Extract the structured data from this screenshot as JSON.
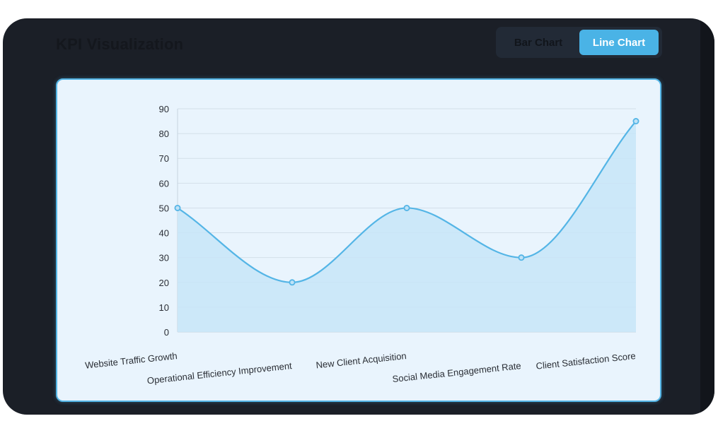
{
  "page": {
    "title": "KPI Visualization"
  },
  "toggle": {
    "bar_label": "Bar Chart",
    "line_label": "Line Chart",
    "active": "line"
  },
  "colors": {
    "background": "#1b1f27",
    "accent": "#4ab3e6",
    "card_background": "#e9f4fd",
    "line": "#54b5e6",
    "area_fill": "#c7e5f8"
  },
  "chart_data": {
    "type": "line",
    "categories": [
      "Website Traffic Growth",
      "Operational Efficiency Improvement",
      "New Client Acquisition",
      "Social Media Engagement Rate",
      "Client Satisfaction Score"
    ],
    "series": [
      {
        "values": [
          50,
          20,
          50,
          30,
          85
        ]
      }
    ],
    "ylim": [
      0,
      90
    ],
    "yticks": [
      0,
      10,
      20,
      30,
      40,
      50,
      60,
      70,
      80,
      90
    ],
    "fill": true,
    "smooth": true,
    "grid": true,
    "legend": "none"
  }
}
